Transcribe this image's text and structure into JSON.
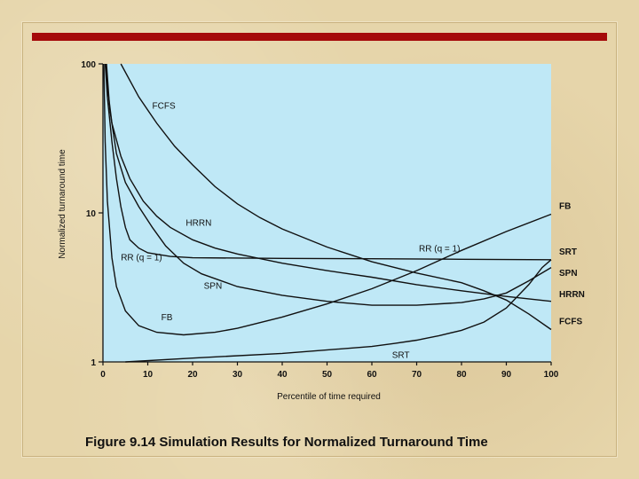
{
  "caption": "Figure 9.14 Simulation Results for Normalized Turnaround Time",
  "chart_data": {
    "type": "line",
    "title": "",
    "xlabel": "Percentile of time required",
    "ylabel": "Normalized turnaround time",
    "xlim": [
      0,
      100
    ],
    "ylim": [
      1,
      100
    ],
    "yscale": "log",
    "grid": false,
    "plot_background": "#bfe8f6",
    "x_ticks": [
      "0",
      "10",
      "20",
      "30",
      "40",
      "50",
      "60",
      "70",
      "80",
      "90",
      "100"
    ],
    "y_ticks": [
      {
        "value": 100,
        "label": "100"
      },
      {
        "value": 10,
        "label": "10"
      },
      {
        "value": 1,
        "label": "1"
      }
    ],
    "series": [
      {
        "name": "FCFS",
        "inline_label": {
          "text": "FCFS",
          "x": 11,
          "y": 50
        },
        "edge_label": "FCFS",
        "points": [
          [
            4,
            100
          ],
          [
            8,
            60
          ],
          [
            12,
            40
          ],
          [
            16,
            28
          ],
          [
            20,
            21
          ],
          [
            25,
            15
          ],
          [
            30,
            11.5
          ],
          [
            35,
            9.3
          ],
          [
            40,
            7.8
          ],
          [
            50,
            5.9
          ],
          [
            60,
            4.7
          ],
          [
            70,
            3.95
          ],
          [
            80,
            3.4
          ],
          [
            85,
            3.0
          ],
          [
            90,
            2.6
          ],
          [
            95,
            2.1
          ],
          [
            100,
            1.65
          ]
        ]
      },
      {
        "name": "HRRN",
        "inline_label": {
          "text": "HRRN",
          "x": 18.5,
          "y": 8.2
        },
        "edge_label": "HRRN",
        "points": [
          [
            0.6,
            100
          ],
          [
            1,
            70
          ],
          [
            2,
            40
          ],
          [
            4,
            24
          ],
          [
            6,
            17
          ],
          [
            9,
            12
          ],
          [
            12,
            9.5
          ],
          [
            15,
            8
          ],
          [
            20,
            6.6
          ],
          [
            25,
            5.8
          ],
          [
            30,
            5.3
          ],
          [
            40,
            4.6
          ],
          [
            50,
            4.1
          ],
          [
            60,
            3.7
          ],
          [
            70,
            3.3
          ],
          [
            80,
            3.0
          ],
          [
            90,
            2.75
          ],
          [
            100,
            2.55
          ]
        ]
      },
      {
        "name": "RR (q = 1)",
        "inline_label": {
          "text": "RR (q = 1)",
          "x": 4,
          "y": 4.8
        },
        "inline_label_2": {
          "text": "RR (q = 1)",
          "x": 70.5,
          "y": 5.5
        },
        "edge_label": "",
        "points": [
          [
            0.5,
            100
          ],
          [
            1,
            60
          ],
          [
            2,
            30
          ],
          [
            3,
            17
          ],
          [
            4,
            11
          ],
          [
            5,
            8
          ],
          [
            6,
            6.6
          ],
          [
            8,
            5.8
          ],
          [
            10,
            5.4
          ],
          [
            15,
            5.1
          ],
          [
            20,
            5.0
          ],
          [
            40,
            4.95
          ],
          [
            60,
            4.92
          ],
          [
            80,
            4.88
          ],
          [
            100,
            4.85
          ]
        ]
      },
      {
        "name": "SPN",
        "inline_label": {
          "text": "SPN",
          "x": 22.5,
          "y": 3.1
        },
        "edge_label": "SPN",
        "points": [
          [
            0.8,
            100
          ],
          [
            1.5,
            50
          ],
          [
            3,
            25
          ],
          [
            5,
            16
          ],
          [
            8,
            11
          ],
          [
            11,
            8
          ],
          [
            14,
            6
          ],
          [
            18,
            4.6
          ],
          [
            22,
            3.9
          ],
          [
            30,
            3.2
          ],
          [
            40,
            2.8
          ],
          [
            50,
            2.55
          ],
          [
            60,
            2.4
          ],
          [
            70,
            2.4
          ],
          [
            80,
            2.5
          ],
          [
            85,
            2.65
          ],
          [
            90,
            2.9
          ],
          [
            95,
            3.5
          ],
          [
            100,
            4.3
          ]
        ]
      },
      {
        "name": "FB",
        "inline_label": {
          "text": "FB",
          "x": 13,
          "y": 1.9
        },
        "edge_label": "FB",
        "points": [
          [
            0.2,
            100
          ],
          [
            0.5,
            30
          ],
          [
            1,
            12
          ],
          [
            2,
            5
          ],
          [
            3,
            3.2
          ],
          [
            5,
            2.2
          ],
          [
            8,
            1.75
          ],
          [
            12,
            1.58
          ],
          [
            18,
            1.52
          ],
          [
            25,
            1.58
          ],
          [
            30,
            1.68
          ],
          [
            40,
            2.0
          ],
          [
            50,
            2.45
          ],
          [
            60,
            3.1
          ],
          [
            70,
            4.1
          ],
          [
            80,
            5.6
          ],
          [
            90,
            7.5
          ],
          [
            100,
            9.8
          ]
        ]
      },
      {
        "name": "SRT",
        "inline_label": {
          "text": "SRT",
          "x": 64.5,
          "y": 1.06
        },
        "edge_label": "SRT",
        "points": [
          [
            5,
            1.0
          ],
          [
            20,
            1.06
          ],
          [
            40,
            1.14
          ],
          [
            60,
            1.27
          ],
          [
            65,
            1.33
          ],
          [
            70,
            1.4
          ],
          [
            75,
            1.5
          ],
          [
            80,
            1.63
          ],
          [
            85,
            1.85
          ],
          [
            90,
            2.3
          ],
          [
            95,
            3.3
          ],
          [
            98,
            4.3
          ],
          [
            100,
            4.85
          ]
        ]
      }
    ]
  }
}
